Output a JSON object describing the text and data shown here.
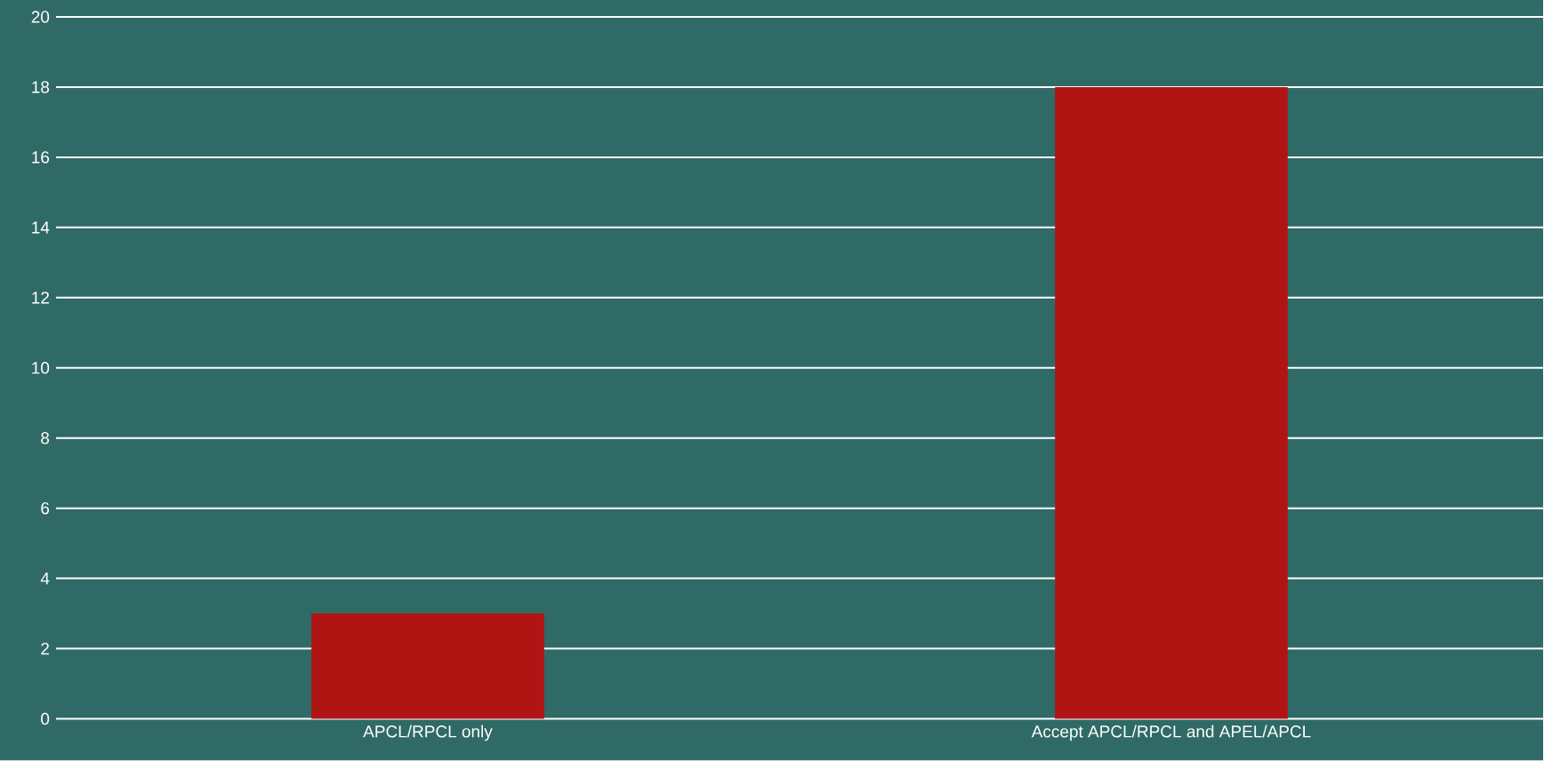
{
  "chart_data": {
    "type": "bar",
    "categories": [
      "APCL/RPCL only",
      "Accept APCL/RPCL and APEL/APCL"
    ],
    "values": [
      3,
      18
    ],
    "color": "#b01514",
    "ylim": [
      0,
      20
    ],
    "yticks": [
      0,
      2,
      4,
      6,
      8,
      10,
      12,
      14,
      16,
      18,
      20
    ],
    "grid": "y"
  }
}
